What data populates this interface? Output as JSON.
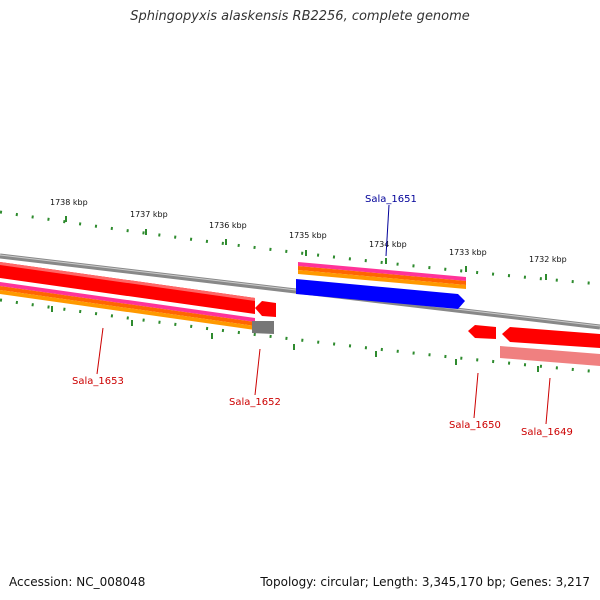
{
  "title": "Sphingopyxis alaskensis RB2256, complete genome",
  "footer": {
    "accession": "Accession: NC_008048",
    "summary": "Topology: circular; Length: 3,345,170 bp; Genes: 3,217"
  },
  "scale": {
    "ticks": [
      "1738 kbp",
      "1737 kbp",
      "1736 kbp",
      "1735 kbp",
      "1734 kbp",
      "1733 kbp",
      "1732 kbp"
    ]
  },
  "genes": [
    {
      "id": "Sala_1653",
      "strand": "reverse",
      "label_color": "#cc0000"
    },
    {
      "id": "Sala_1652",
      "strand": "reverse",
      "label_color": "#cc0000"
    },
    {
      "id": "Sala_1651",
      "strand": "forward",
      "label_color": "#000099"
    },
    {
      "id": "Sala_1650",
      "strand": "reverse",
      "label_color": "#cc0000"
    },
    {
      "id": "Sala_1649",
      "strand": "reverse",
      "label_color": "#cc0000"
    }
  ],
  "colors": {
    "backbone": "#888888",
    "reverse_cds": "#ff0000",
    "forward_cds": "#0000ff",
    "tick": "#228b22",
    "pink": "#ff3399",
    "orange": "#ff9900"
  }
}
